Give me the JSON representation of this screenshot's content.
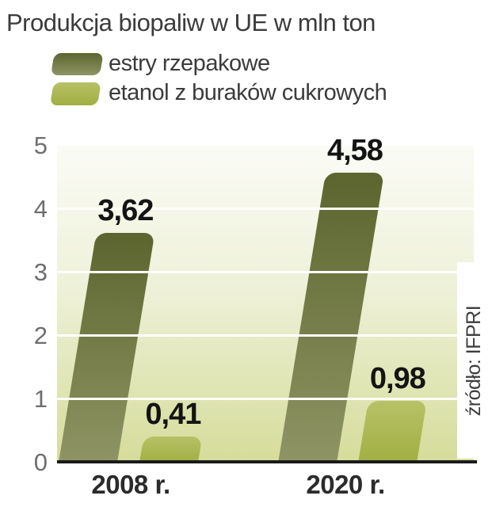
{
  "title": "Produkcja biopaliw w UE w mln ton",
  "source": "źródło: IFPRI",
  "legend": {
    "items": [
      {
        "label": "estry rzepakowe"
      },
      {
        "label": "etanol z buraków cukrowych"
      }
    ]
  },
  "colors": {
    "dark_series_top": "#5c652e",
    "dark_series_bottom": "#8e9464",
    "light_series_top": "#b7c267",
    "light_series_bottom": "#a1af42",
    "plot_bg_top": "#fbfbf6",
    "plot_bg_bottom": "#d5dc9a",
    "gridline": "#ffffff",
    "baseline": "#1a1a1a"
  },
  "chart_data": {
    "type": "bar",
    "title": "Produkcja biopaliw w UE w mln ton",
    "unit": "mln ton",
    "categories": [
      "2008 r.",
      "2020 r."
    ],
    "series": [
      {
        "name": "estry rzepakowe",
        "values": [
          3.62,
          4.58
        ],
        "labels": [
          "3,62",
          "4,58"
        ]
      },
      {
        "name": "etanol z buraków cukrowych",
        "values": [
          0.41,
          0.98
        ],
        "labels": [
          "0,41",
          "0,98"
        ]
      }
    ],
    "ylim": [
      0,
      5
    ],
    "yticks": [
      "0",
      "1",
      "2",
      "3",
      "4",
      "5"
    ],
    "grid": true,
    "gridlines_at": [
      1,
      2,
      3,
      4
    ],
    "legend_position": "top-left",
    "bar_style": "slanted, rounded top corners",
    "source": "źródło: IFPRI"
  }
}
